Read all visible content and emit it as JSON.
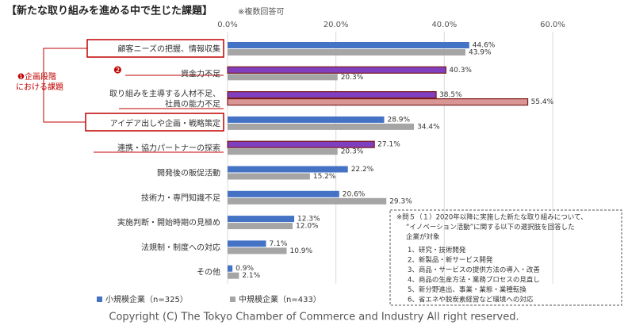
{
  "chart_data": {
    "type": "bar",
    "orientation": "horizontal",
    "title": "【新たな取り組みを進める中で生じた課題】",
    "subtitle": "※複数回答可",
    "categories": [
      "顧客ニーズの把握、情報収集",
      "資金力不足",
      [
        "取り組みを主導する人材不足、",
        "社員の能力不足"
      ],
      "アイデア出しや企画・戦略策定",
      "連携・協力パートナーの探索",
      "開発後の販促活動",
      "技術力・専門知識不足",
      "実施判断・開始時期の見極め",
      "法規制・制度への対応",
      "その他"
    ],
    "series": [
      {
        "name": "小規模企業（n=325）",
        "color": "#4472c4",
        "colors": [
          "#4472c4",
          "#7f3fbf",
          "#7f3fbf",
          "#4472c4",
          "#7f3fbf",
          "#4472c4",
          "#4472c4",
          "#4472c4",
          "#4472c4",
          "#4472c4"
        ],
        "values": [
          44.6,
          40.3,
          38.5,
          28.9,
          27.1,
          22.2,
          20.6,
          12.3,
          7.1,
          0.9
        ],
        "value_labels": [
          "44.6%",
          "40.3%",
          "38.5%",
          "28.9%",
          "27.1%",
          "22.2%",
          "20.6%",
          "12.3%",
          "7.1%",
          "0.9%"
        ]
      },
      {
        "name": "中規模企業（n=433）",
        "color": "#a5a5a5",
        "colors": [
          "#a5a5a5",
          "#a5a5a5",
          "#d99694",
          "#a5a5a5",
          "#a5a5a5",
          "#a5a5a5",
          "#a5a5a5",
          "#a5a5a5",
          "#a5a5a5",
          "#a5a5a5"
        ],
        "values": [
          43.9,
          20.3,
          55.4,
          34.4,
          20.3,
          15.2,
          29.3,
          12.0,
          10.9,
          2.1
        ],
        "value_labels": [
          "43.9%",
          "20.3%",
          "55.4%",
          "34.4%",
          "20.3%",
          "15.2%",
          "29.3%",
          "12.0%",
          "10.9%",
          "2.1%"
        ]
      }
    ],
    "xlim": [
      0,
      60
    ],
    "xticks": [
      {
        "value": 0,
        "label": "0.0%"
      },
      {
        "value": 20,
        "label": "20.0%"
      },
      {
        "value": 40,
        "label": "40.0%"
      },
      {
        "value": 60,
        "label": "60.0%"
      }
    ],
    "grid": true,
    "legend": "bottom",
    "annotations": [
      "❶企画段階",
      "における課題",
      "❷"
    ],
    "note": [
      "※問５（１）2020年以降に実施した新たな取り組みについて、",
      "“イノベーション活動”に関する以下の選択肢を回答した",
      "企業が対象",
      "1、研究・技術開発",
      "2、新製品・新サービス開発",
      "3、商品・サービスの提供方法の導入・改善",
      "4、商品の生産方法・業務プロセスの見直し",
      "5、新分野進出、事業・業態・業種転換",
      "6、省エネや脱炭素経営など環境への対応"
    ],
    "copyright": "Copyright (C) The Tokyo Chamber of Commerce and Industry All right reserved."
  }
}
